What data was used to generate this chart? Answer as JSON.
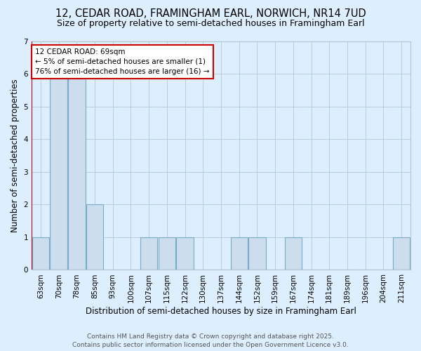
{
  "title1": "12, CEDAR ROAD, FRAMINGHAM EARL, NORWICH, NR14 7UD",
  "title2": "Size of property relative to semi-detached houses in Framingham Earl",
  "xlabel": "Distribution of semi-detached houses by size in Framingham Earl",
  "ylabel": "Number of semi-detached properties",
  "categories": [
    "63sqm",
    "70sqm",
    "78sqm",
    "85sqm",
    "93sqm",
    "100sqm",
    "107sqm",
    "115sqm",
    "122sqm",
    "130sqm",
    "137sqm",
    "144sqm",
    "152sqm",
    "159sqm",
    "167sqm",
    "174sqm",
    "181sqm",
    "189sqm",
    "196sqm",
    "204sqm",
    "211sqm"
  ],
  "values": [
    1,
    6,
    6,
    2,
    0,
    0,
    1,
    1,
    1,
    0,
    0,
    1,
    1,
    0,
    1,
    0,
    0,
    0,
    0,
    0,
    1
  ],
  "bar_color": "#ccdded",
  "bar_edge_color": "#7aaac8",
  "background_color": "#ddeeff",
  "red_line_x": -0.5,
  "annotation_title": "12 CEDAR ROAD: 69sqm",
  "annotation_line1": "← 5% of semi-detached houses are smaller (1)",
  "annotation_line2": "76% of semi-detached houses are larger (16) →",
  "annotation_box_facecolor": "#ffffff",
  "annotation_box_edgecolor": "#cc0000",
  "red_line_color": "#cc0000",
  "ylim": [
    0,
    7
  ],
  "yticks": [
    0,
    1,
    2,
    3,
    4,
    5,
    6,
    7
  ],
  "footer": "Contains HM Land Registry data © Crown copyright and database right 2025.\nContains public sector information licensed under the Open Government Licence v3.0.",
  "title1_fontsize": 10.5,
  "title2_fontsize": 9,
  "xlabel_fontsize": 8.5,
  "ylabel_fontsize": 8.5,
  "tick_fontsize": 7.5,
  "footer_fontsize": 6.5
}
